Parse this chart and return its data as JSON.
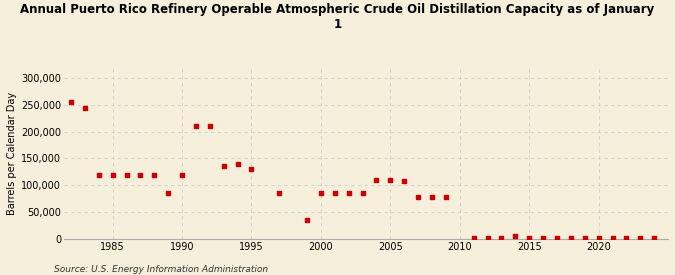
{
  "title": "Annual Puerto Rico Refinery Operable Atmospheric Crude Oil Distillation Capacity as of January\n1",
  "ylabel": "Barrels per Calendar Day",
  "source": "Source: U.S. Energy Information Administration",
  "background_color": "#f5efdc",
  "marker_color": "#cc0000",
  "grid_color": "#cccccc",
  "years": [
    1982,
    1983,
    1984,
    1985,
    1986,
    1987,
    1988,
    1989,
    1990,
    1991,
    1992,
    1993,
    1994,
    1995,
    1997,
    1999,
    2000,
    2001,
    2002,
    2003,
    2004,
    2005,
    2006,
    2007,
    2008,
    2009,
    2011,
    2012,
    2013,
    2014,
    2015,
    2016,
    2017,
    2018,
    2019,
    2020,
    2021,
    2022,
    2023,
    2024
  ],
  "values": [
    255000,
    245000,
    120000,
    120000,
    120000,
    120000,
    120000,
    85000,
    120000,
    210000,
    210000,
    135000,
    140000,
    130000,
    85000,
    35000,
    85000,
    85000,
    85000,
    85000,
    110000,
    110000,
    108000,
    78000,
    78000,
    78000,
    2000,
    2000,
    2000,
    5000,
    2000,
    2000,
    2000,
    2000,
    2000,
    2000,
    2000,
    2000,
    2000,
    2000
  ],
  "ylim": [
    0,
    320000
  ],
  "yticks": [
    0,
    50000,
    100000,
    150000,
    200000,
    250000,
    300000
  ],
  "xlim": [
    1981.5,
    2025
  ],
  "xticks": [
    1985,
    1990,
    1995,
    2000,
    2005,
    2010,
    2015,
    2020
  ],
  "title_fontsize": 8.5,
  "axis_fontsize": 7,
  "tick_fontsize": 7,
  "source_fontsize": 6.5
}
